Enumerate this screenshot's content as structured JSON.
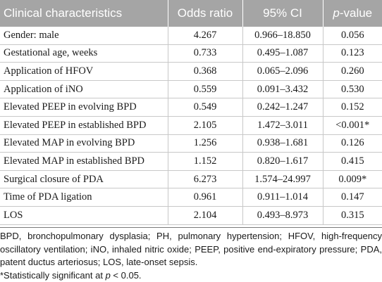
{
  "table": {
    "headers": {
      "characteristic": "Clinical characteristics",
      "odds_ratio": "Odds ratio",
      "ci": "95% CI",
      "p_value_italic": "p",
      "p_value_rest": "-value"
    },
    "rows": [
      {
        "characteristic": "Gender: male",
        "odds_ratio": "4.267",
        "ci": "0.966–18.850",
        "p_value": "0.056"
      },
      {
        "characteristic": "Gestational age, weeks",
        "odds_ratio": "0.733",
        "ci": "0.495–1.087",
        "p_value": "0.123"
      },
      {
        "characteristic": "Application of HFOV",
        "odds_ratio": "0.368",
        "ci": "0.065–2.096",
        "p_value": "0.260"
      },
      {
        "characteristic": "Application of iNO",
        "odds_ratio": "0.559",
        "ci": "0.091–3.432",
        "p_value": "0.530"
      },
      {
        "characteristic": "Elevated PEEP in evolving BPD",
        "odds_ratio": "0.549",
        "ci": "0.242–1.247",
        "p_value": "0.152"
      },
      {
        "characteristic": "Elevated PEEP in established BPD",
        "odds_ratio": "2.105",
        "ci": "1.472–3.011",
        "p_value": "<0.001*"
      },
      {
        "characteristic": "Elevated MAP in evolving BPD",
        "odds_ratio": "1.256",
        "ci": "0.938–1.681",
        "p_value": "0.126"
      },
      {
        "characteristic": "Elevated MAP in established BPD",
        "odds_ratio": "1.152",
        "ci": "0.820–1.617",
        "p_value": "0.415"
      },
      {
        "characteristic": "Surgical closure of PDA",
        "odds_ratio": "6.273",
        "ci": "1.574–24.997",
        "p_value": "0.009*"
      },
      {
        "characteristic": "Time of PDA ligation",
        "odds_ratio": "0.961",
        "ci": "0.911–1.014",
        "p_value": "0.147"
      },
      {
        "characteristic": "LOS",
        "odds_ratio": "2.104",
        "ci": "0.493–8.973",
        "p_value": "0.315"
      }
    ]
  },
  "footnote": {
    "abbreviations": "BPD, bronchopulmonary dysplasia; PH, pulmonary hypertension; HFOV, high-frequency oscillatory ventilation; iNO, inhaled nitric oxide; PEEP, positive end-expiratory pressure; PDA, patent ductus arteriosus; LOS, late-onset sepsis.",
    "significance_prefix": "*Statistically significant at ",
    "significance_var": "p",
    "significance_suffix": " < 0.05."
  }
}
